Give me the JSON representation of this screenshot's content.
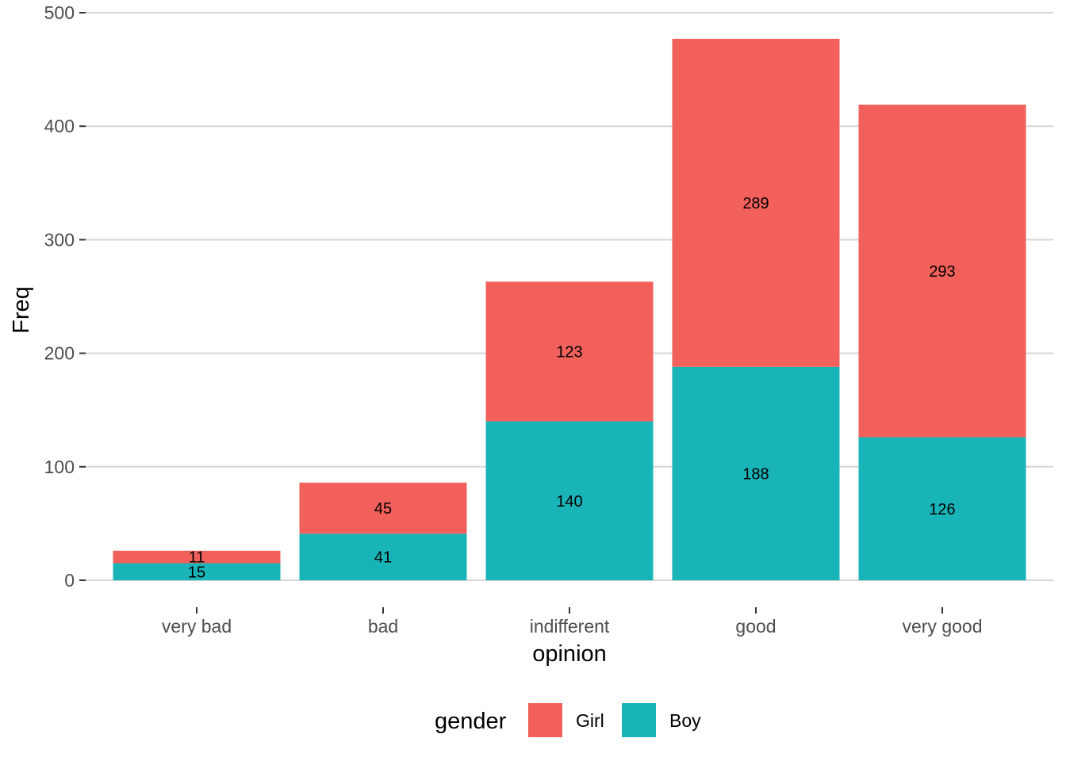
{
  "chart_data": {
    "type": "bar",
    "stacked": true,
    "categories": [
      "very bad",
      "bad",
      "indifferent",
      "good",
      "very good"
    ],
    "series": [
      {
        "name": "Boy",
        "color": "#19B4B8",
        "values": [
          15,
          41,
          140,
          188,
          126
        ]
      },
      {
        "name": "Girl",
        "color": "#F2605B",
        "values": [
          11,
          45,
          123,
          289,
          293
        ]
      }
    ],
    "xlabel": "opinion",
    "ylabel": "Freq",
    "ylim": [
      0,
      500
    ],
    "yticks": [
      "0",
      "100",
      "200",
      "300",
      "400",
      "500"
    ],
    "grid": true,
    "legend": {
      "title": "gender",
      "position": "bottom",
      "items": [
        {
          "label": "Girl",
          "color": "#F2605B"
        },
        {
          "label": "Boy",
          "color": "#19B4B8"
        }
      ]
    }
  }
}
